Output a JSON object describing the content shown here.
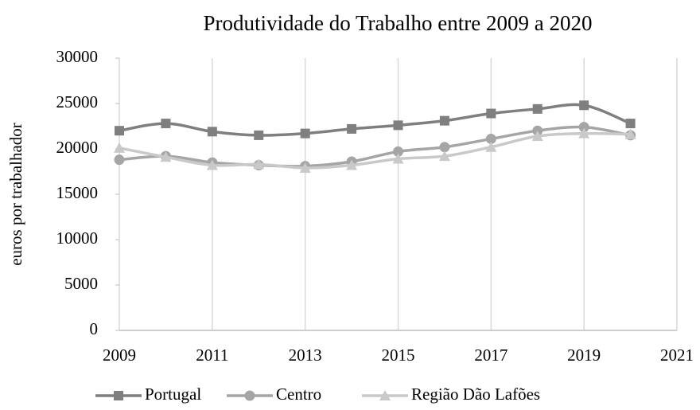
{
  "chart_data": {
    "type": "line",
    "title": "Produtividade do Trabalho entre 2009 a 2020",
    "y_label": "euros por trabalhador",
    "x": [
      2009,
      2010,
      2011,
      2012,
      2013,
      2014,
      2015,
      2016,
      2017,
      2018,
      2019,
      2020
    ],
    "series": [
      {
        "name": "Portugal",
        "color": "#7f7f7f",
        "marker": "square",
        "values": [
          22000,
          22800,
          21900,
          21500,
          21700,
          22200,
          22600,
          23100,
          23900,
          24400,
          24800,
          22800
        ]
      },
      {
        "name": "Centro",
        "color": "#a5a5a5",
        "marker": "circle",
        "values": [
          18800,
          19200,
          18500,
          18200,
          18100,
          18600,
          19700,
          20200,
          21100,
          22000,
          22400,
          21500
        ]
      },
      {
        "name": "Região Dão Lafões",
        "color": "#c9c9c9",
        "marker": "triangle",
        "values": [
          20100,
          19100,
          18200,
          18300,
          17900,
          18200,
          18900,
          19200,
          20200,
          21400,
          21700,
          21600
        ]
      }
    ],
    "xlim": [
      2009,
      2021
    ],
    "xticks": [
      2009,
      2011,
      2013,
      2015,
      2017,
      2019,
      2021
    ],
    "ylim": [
      0,
      30000
    ],
    "yticks": [
      0,
      5000,
      10000,
      15000,
      20000,
      25000,
      30000
    ],
    "grid": "x",
    "legend": "bottom"
  }
}
